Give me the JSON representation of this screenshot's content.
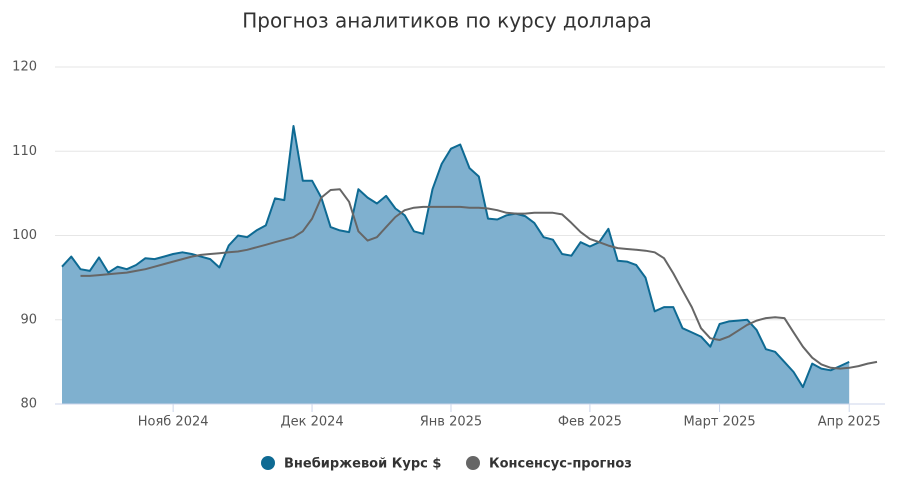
{
  "chart_data": {
    "type": "area-line",
    "title": "Прогноз аналитиков по курсу доллара",
    "categories": [
      null,
      null,
      null,
      null,
      null,
      null,
      null,
      null,
      null,
      null,
      null,
      null,
      "Нояб 2024",
      null,
      null,
      null,
      null,
      null,
      null,
      null,
      null,
      null,
      null,
      null,
      null,
      null,
      null,
      "Дек 2024",
      null,
      null,
      null,
      null,
      null,
      null,
      null,
      null,
      null,
      null,
      null,
      null,
      null,
      null,
      "Янв 2025",
      null,
      null,
      null,
      null,
      null,
      null,
      null,
      null,
      null,
      null,
      null,
      null,
      null,
      null,
      "Фев 2025",
      null,
      null,
      null,
      null,
      null,
      null,
      null,
      null,
      null,
      null,
      null,
      null,
      null,
      "Март 2025",
      null,
      null,
      null,
      null,
      null,
      null,
      null,
      null,
      null,
      null,
      null,
      null,
      null,
      "Апр 2025",
      null,
      null,
      null
    ],
    "series": [
      {
        "name": "Внебиржевой Курс $",
        "color": "#0e6a93",
        "fill_color": "#7fb0cf",
        "values": [
          96.3,
          97.5,
          96.0,
          95.8,
          97.4,
          95.6,
          96.3,
          96.0,
          96.5,
          97.3,
          97.2,
          97.5,
          97.8,
          98.0,
          97.8,
          97.5,
          97.2,
          96.2,
          98.8,
          100.0,
          99.8,
          100.6,
          101.2,
          104.4,
          104.2,
          113.0,
          106.5,
          106.5,
          104.5,
          101.0,
          100.6,
          100.4,
          105.5,
          104.5,
          103.8,
          104.7,
          103.2,
          102.4,
          100.5,
          100.2,
          105.5,
          108.5,
          110.3,
          110.8,
          108.0,
          107.0,
          102.0,
          101.9,
          102.4,
          102.6,
          102.3,
          101.5,
          99.8,
          99.5,
          97.8,
          97.6,
          99.2,
          98.7,
          99.2,
          100.8,
          97.0,
          96.9,
          96.5,
          95.0,
          91.0,
          91.5,
          91.5,
          89.0,
          88.5,
          88.0,
          86.8,
          89.5,
          89.8,
          89.9,
          90.0,
          88.8,
          86.5,
          86.2,
          85.0,
          83.8,
          82.0,
          84.8,
          84.2,
          84.0,
          84.5,
          85.0,
          null,
          null,
          null
        ]
      },
      {
        "name": "Консенсус-прогноз",
        "color": "#666666",
        "values": [
          null,
          null,
          95.2,
          95.2,
          95.3,
          95.4,
          95.5,
          95.6,
          95.8,
          96.0,
          96.3,
          96.6,
          96.9,
          97.2,
          97.5,
          97.7,
          97.8,
          97.9,
          98.0,
          98.1,
          98.3,
          98.6,
          98.9,
          99.2,
          99.5,
          99.8,
          100.5,
          102.0,
          104.5,
          105.4,
          105.5,
          104.0,
          100.5,
          99.4,
          99.8,
          101.0,
          102.2,
          103.0,
          103.3,
          103.4,
          103.4,
          103.4,
          103.4,
          103.4,
          103.3,
          103.3,
          103.2,
          103.0,
          102.7,
          102.6,
          102.6,
          102.7,
          102.7,
          102.7,
          102.5,
          101.5,
          100.4,
          99.6,
          99.2,
          98.8,
          98.5,
          98.4,
          98.3,
          98.2,
          98.0,
          97.3,
          95.5,
          93.5,
          91.5,
          89.0,
          87.8,
          87.6,
          88.0,
          88.7,
          89.4,
          89.9,
          90.2,
          90.3,
          90.2,
          88.5,
          86.8,
          85.5,
          84.7,
          84.3,
          84.2,
          84.3,
          84.5,
          84.8,
          85.0
        ]
      }
    ],
    "ylim": [
      80,
      120
    ],
    "yticks": [
      80,
      90,
      100,
      110,
      120
    ],
    "grid": true,
    "legend": "bottom"
  }
}
